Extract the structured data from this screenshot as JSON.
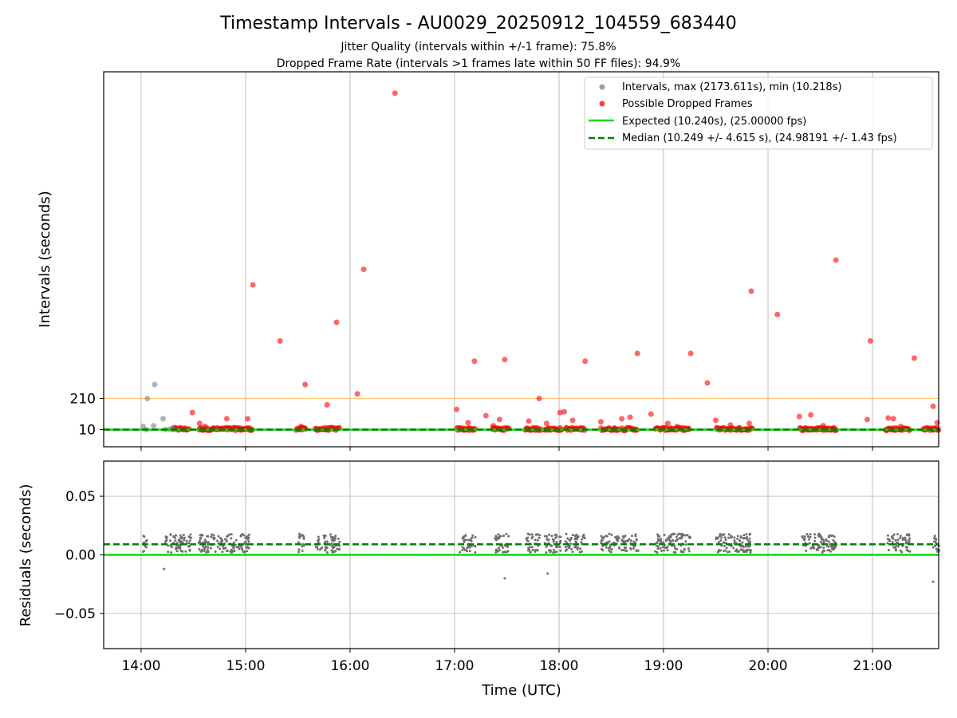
{
  "colors": {
    "interval": "#808080",
    "dropped": "#ff0000",
    "expected": "#00e000",
    "median": "#008000",
    "threshold": "#ffb84d",
    "residual": "#707070",
    "grid": "#c8c8c8"
  },
  "chart_data": [
    {
      "type": "scatter",
      "title": "Timestamp Intervals - AU0029_20250912_104559_683440",
      "subtitle_1": "Jitter Quality (intervals within +/-1 frame): 75.8%",
      "subtitle_2": "Dropped Frame Rate (intervals >1 frames late within 50 FF files): 94.9%",
      "ylabel": "Intervals (seconds)",
      "ytick_labels": [
        "210",
        "10"
      ],
      "yticks": [
        210,
        10
      ],
      "ylim": [
        -100,
        2310
      ],
      "xlim_hours": [
        13.6417,
        21.6333
      ],
      "grid_x": true,
      "legend_placement": "upper right",
      "legend": [
        {
          "kind": "marker",
          "color": "#9e9e9e",
          "label": "Intervals, max (2173.611s), min (10.218s)"
        },
        {
          "kind": "marker",
          "color": "#ff4040",
          "label": "Possible Dropped Frames"
        },
        {
          "kind": "line",
          "color": "#00e000",
          "label": "Expected (10.240s), (25.00000 fps)"
        },
        {
          "kind": "dashed",
          "color": "#008000",
          "label": "Median (10.249 +/- 4.615 s), (24.98191 +/- 1.43 fps)"
        }
      ],
      "reference_lines": {
        "threshold": 210,
        "expected": 10.24,
        "median": 10.249
      },
      "series": [
        {
          "name": "Intervals, max (2173.611s), min (10.218s)",
          "points": [
            [
              14.02,
              31
            ],
            [
              14.05,
              10
            ],
            [
              14.06,
              210
            ],
            [
              14.12,
              35
            ],
            [
              14.13,
              300
            ],
            [
              14.21,
              80
            ],
            [
              14.23,
              10
            ],
            [
              14.27,
              12
            ],
            [
              14.3,
              18
            ],
            [
              14.36,
              10
            ]
          ]
        },
        {
          "name": "Possible Dropped Frames",
          "points": [
            [
              15.07,
              940
            ],
            [
              15.33,
              580
            ],
            [
              15.57,
              300
            ],
            [
              15.87,
              700
            ],
            [
              16.07,
              240
            ],
            [
              16.13,
              1040
            ],
            [
              16.43,
              2173
            ],
            [
              17.19,
              450
            ],
            [
              17.48,
              460
            ],
            [
              17.81,
              210
            ],
            [
              18.25,
              450
            ],
            [
              18.75,
              500
            ],
            [
              19.26,
              500
            ],
            [
              19.42,
              310
            ],
            [
              19.84,
              900
            ],
            [
              20.09,
              750
            ],
            [
              20.65,
              1100
            ],
            [
              20.98,
              580
            ],
            [
              21.4,
              470
            ],
            [
              14.49,
              120
            ],
            [
              14.82,
              80
            ],
            [
              15.02,
              80
            ],
            [
              15.53,
              30
            ],
            [
              15.78,
              170
            ],
            [
              17.02,
              140
            ],
            [
              17.13,
              55
            ],
            [
              17.3,
              100
            ],
            [
              17.43,
              75
            ],
            [
              17.71,
              65
            ],
            [
              17.88,
              50
            ],
            [
              18.01,
              120
            ],
            [
              18.05,
              125
            ],
            [
              18.13,
              70
            ],
            [
              18.4,
              60
            ],
            [
              18.6,
              80
            ],
            [
              18.68,
              90
            ],
            [
              18.88,
              110
            ],
            [
              19.04,
              50
            ],
            [
              19.13,
              30
            ],
            [
              19.5,
              70
            ],
            [
              19.64,
              40
            ],
            [
              19.82,
              50
            ],
            [
              20.3,
              95
            ],
            [
              20.41,
              105
            ],
            [
              20.53,
              35
            ],
            [
              20.95,
              75
            ],
            [
              21.15,
              85
            ],
            [
              21.2,
              80
            ],
            [
              21.27,
              30
            ],
            [
              21.58,
              160
            ],
            [
              21.62,
              55
            ],
            [
              14.37,
              20
            ],
            [
              14.56,
              50
            ],
            [
              14.61,
              30
            ],
            [
              14.92,
              20
            ],
            [
              17.37,
              35
            ],
            [
              17.69,
              20
            ],
            [
              19.07,
              20
            ],
            [
              20.62,
              18
            ]
          ],
          "dense_ranges_hours": [
            [
              14.3,
              14.46
            ],
            [
              14.55,
              15.07
            ],
            [
              15.48,
              15.58
            ],
            [
              15.66,
              15.9
            ],
            [
              17.02,
              17.2
            ],
            [
              17.36,
              17.52
            ],
            [
              17.67,
              17.83
            ],
            [
              17.86,
              18.03
            ],
            [
              18.06,
              18.25
            ],
            [
              18.4,
              18.58
            ],
            [
              18.6,
              18.75
            ],
            [
              18.92,
              19.25
            ],
            [
              19.5,
              19.85
            ],
            [
              20.3,
              20.66
            ],
            [
              21.12,
              21.36
            ],
            [
              21.48,
              21.64
            ]
          ]
        }
      ]
    },
    {
      "type": "scatter",
      "xlabel": "Time (UTC)",
      "ylabel": "Residuals (seconds)",
      "ytick_labels": [
        "0.05",
        "0.00",
        "−0.05"
      ],
      "yticks": [
        0.05,
        0.0,
        -0.05
      ],
      "ylim": [
        -0.08,
        0.08
      ],
      "xtick_labels": [
        "14:00",
        "15:00",
        "16:00",
        "17:00",
        "18:00",
        "19:00",
        "20:00",
        "21:00"
      ],
      "xticks_hours": [
        14,
        15,
        16,
        17,
        18,
        19,
        20,
        21
      ],
      "grid": true,
      "reference_lines": {
        "expected": 0.0,
        "median": 0.009
      },
      "series": [
        {
          "name": "Residuals",
          "value_range": [
            0.002,
            0.018
          ],
          "clusters_hours": [
            [
              14.02,
              14.06
            ],
            [
              14.23,
              14.48
            ],
            [
              14.55,
              15.05
            ],
            [
              15.5,
              15.56
            ],
            [
              15.67,
              15.9
            ],
            [
              17.05,
              17.2
            ],
            [
              17.38,
              17.52
            ],
            [
              17.68,
              17.82
            ],
            [
              17.86,
              18.02
            ],
            [
              18.06,
              18.25
            ],
            [
              18.4,
              18.58
            ],
            [
              18.6,
              18.76
            ],
            [
              18.92,
              19.26
            ],
            [
              19.5,
              19.84
            ],
            [
              20.32,
              20.65
            ],
            [
              21.14,
              21.36
            ],
            [
              21.58,
              21.64
            ]
          ],
          "outliers": [
            [
              14.22,
              -0.012
            ],
            [
              17.48,
              -0.02
            ],
            [
              17.89,
              -0.016
            ],
            [
              21.58,
              -0.023
            ]
          ]
        }
      ]
    }
  ]
}
